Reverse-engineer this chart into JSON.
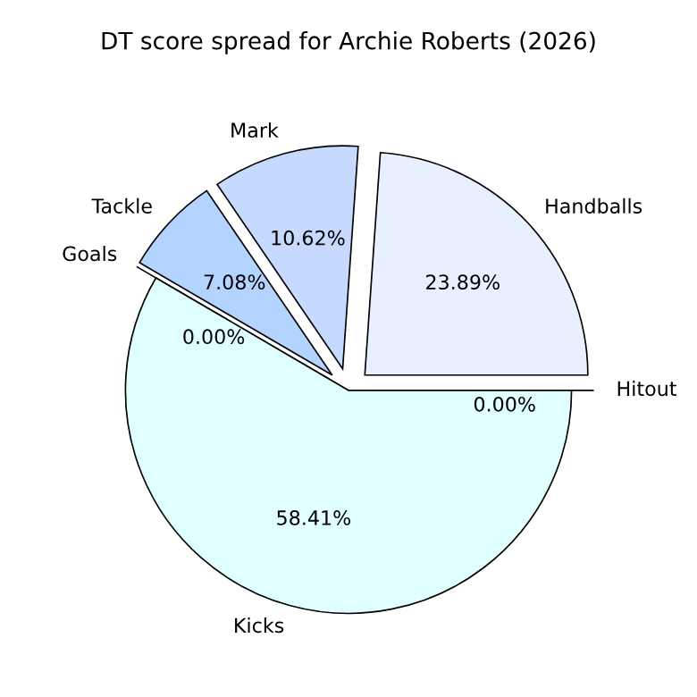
{
  "chart_data": {
    "type": "pie",
    "title": "DT score spread for Archie Roberts (2026)",
    "categories": [
      "Hitout",
      "Handballs",
      "Mark",
      "Tackle",
      "Goals",
      "Kicks"
    ],
    "values": [
      0.0,
      23.89,
      10.62,
      7.08,
      0.0,
      58.41
    ],
    "value_labels": [
      "0.00%",
      "23.89%",
      "10.62%",
      "7.08%",
      "0.00%",
      "58.41%"
    ],
    "colors": [
      "#f0f8ff",
      "#e8f0ff",
      "#c6d9ff",
      "#b3d4ff",
      "#a8c8ff",
      "#e0ffff"
    ]
  }
}
